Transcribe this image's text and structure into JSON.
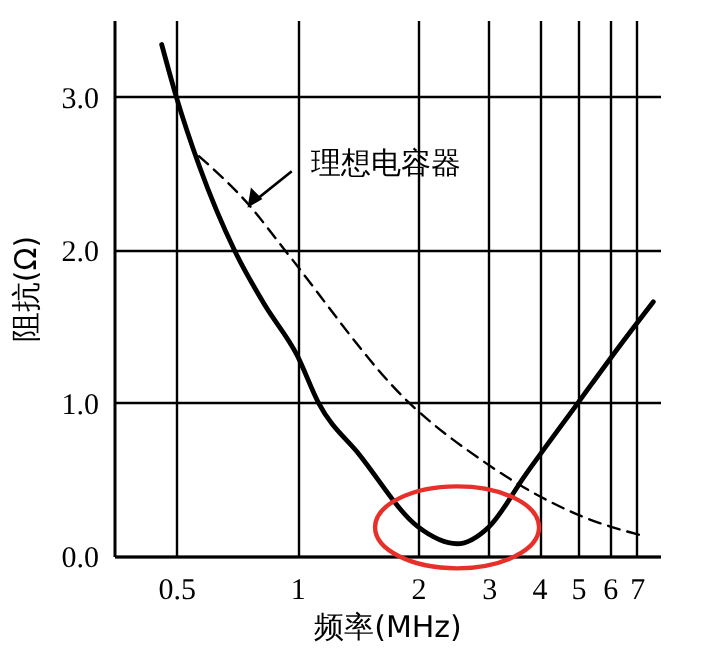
{
  "chart_data": {
    "type": "line",
    "xlabel": "频率(MHz)",
    "ylabel": "阻抗(Ω)",
    "log": "x",
    "xlim": [
      0.35,
      8
    ],
    "xticks": [
      0.5,
      1,
      2,
      3,
      4,
      5,
      6,
      7
    ],
    "ylim": [
      0,
      3.5
    ],
    "yticks": [
      {
        "value": 0,
        "label": "0.0"
      },
      {
        "value": 1,
        "label": "1.0"
      },
      {
        "value": 2,
        "label": "2.0"
      },
      {
        "value": 3,
        "label": "3.0"
      }
    ],
    "grid": true,
    "series": [
      {
        "color": "#000000",
        "line_style": "solid",
        "x": [
          0.46,
          0.5,
          0.57,
          0.7,
          0.83,
          1.0,
          1.13,
          1.43,
          2.0,
          2.5,
          3.0,
          3.7,
          5.0,
          6.3,
          7.7
        ],
        "values": [
          3.34,
          3.0,
          2.55,
          1.99,
          1.64,
          1.31,
          1.0,
          0.66,
          0.19,
          0.08,
          0.19,
          0.53,
          1.0,
          1.36,
          1.66
        ]
      },
      {
        "color": "#000000",
        "line_style": "dashed",
        "x": [
          0.57,
          0.76,
          0.93,
          1.9,
          2.9,
          3.95,
          5.1,
          7.3
        ],
        "values": [
          2.61,
          2.29,
          2.0,
          1.0,
          0.62,
          0.4,
          0.26,
          0.13
        ]
      }
    ],
    "annotations": [
      {
        "text": "理想电容器",
        "x": 0.76,
        "y": 2.29
      }
    ]
  }
}
